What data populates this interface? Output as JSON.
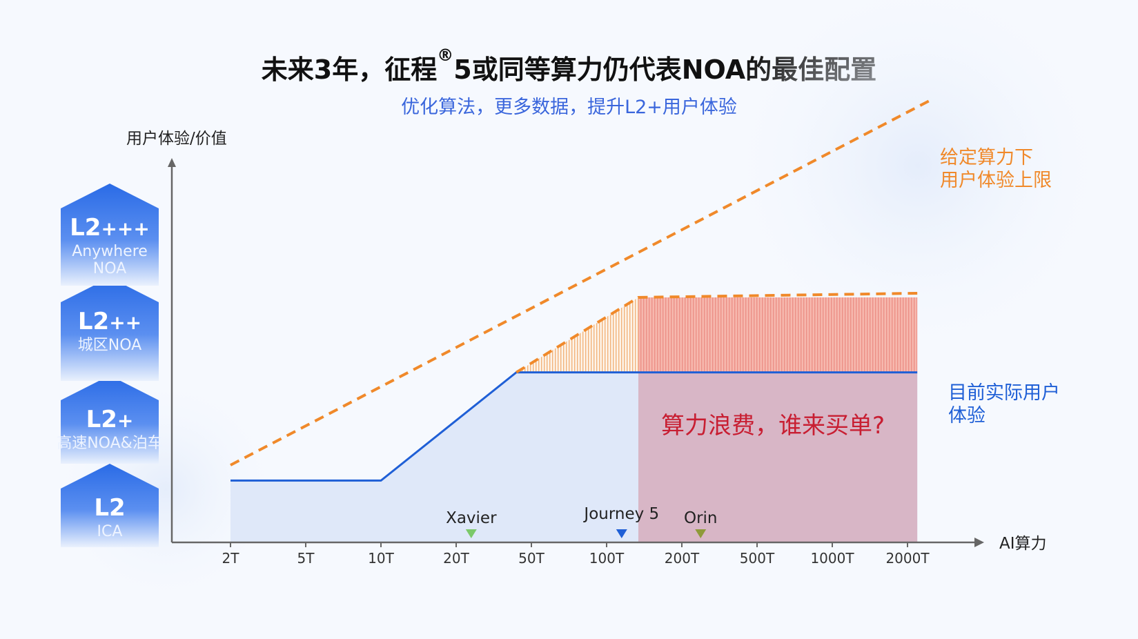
{
  "header": {
    "title_main": "未来3年，征程",
    "title_reg": "®",
    "title_tail": "5或同等算力仍代表NOA的最佳配置",
    "subtitle": "优化算法，更多数据，提升L2+用户体验"
  },
  "colors": {
    "accent_blue": "#1f5fd6",
    "dashed_orange": "#f0892a",
    "waste_red": "#c81e32",
    "tier_blue": "#2a6be6"
  },
  "chart_data": {
    "type": "line",
    "ylabel": "用户体验/价值",
    "xlabel": "AI算力",
    "categories": [
      "2T",
      "5T",
      "10T",
      "20T",
      "50T",
      "100T",
      "200T",
      "500T",
      "1000T",
      "2000T"
    ],
    "y_levels": [
      {
        "name": "L2",
        "sub": "ICA",
        "plus": ""
      },
      {
        "name": "L2",
        "sub": "高速NOA&泊车",
        "plus": "+"
      },
      {
        "name": "L2",
        "sub": "城区NOA",
        "plus": "++"
      },
      {
        "name": "L2",
        "sub": "Anywhere NOA",
        "plus": "+++"
      }
    ],
    "series": [
      {
        "name": "给定算力下用户体验上限",
        "label_lines": [
          "给定算力下",
          "用户体验上限"
        ],
        "style": "dashed",
        "points": [
          [
            0,
            1.0
          ],
          [
            1,
            1.55
          ],
          [
            2,
            2.1
          ],
          [
            3,
            2.65
          ],
          [
            4,
            3.2
          ],
          [
            5,
            3.75
          ],
          [
            6,
            4.3
          ],
          [
            7,
            4.85
          ],
          [
            8,
            5.4
          ],
          [
            9,
            5.95
          ]
        ]
      },
      {
        "name": "目前实际用户体验",
        "label_lines": [
          "目前实际用户",
          "体验"
        ],
        "style": "solid",
        "points": [
          [
            0,
            0.8
          ],
          [
            2,
            0.8
          ],
          [
            3.8,
            2.2
          ],
          [
            9,
            2.2
          ]
        ]
      }
    ],
    "annotation": "算力浪费，谁来买单?",
    "chips": [
      {
        "name": "Xavier",
        "x_index": 3.2,
        "color": "#7cc96a"
      },
      {
        "name": "Journey 5",
        "x_index": 5.2,
        "color": "#1f5fd6"
      },
      {
        "name": "Orin",
        "x_index": 6.25,
        "color": "#8f9a3a"
      }
    ]
  }
}
